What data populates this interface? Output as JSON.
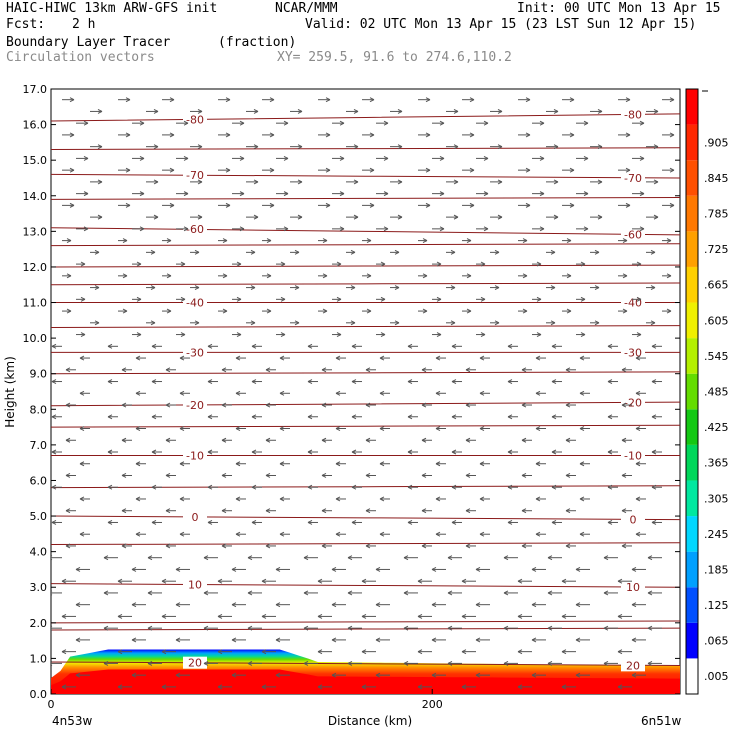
{
  "header": {
    "model": "HAIC-HIWC 13km ARW-GFS init",
    "org": "NCAR/MMM",
    "init": "Init: 00 UTC Mon 13 Apr 15",
    "fcst_label": "Fcst:",
    "fcst_value": "2 h",
    "valid": "Valid: 02 UTC Mon 13 Apr 15 (23 LST Sun 12 Apr 15)",
    "field1_name": "Boundary Layer Tracer",
    "field1_units": "(fraction)",
    "field2_name": "Circulation vectors",
    "xy_range": "XY= 259.5, 91.6 to 274.6,110.2"
  },
  "chart_data": {
    "type": "heatmap",
    "title": "Boundary Layer Tracer",
    "ylabel": "Height (km)",
    "xlabel": "Distance (km)",
    "x_left_label": "4n53w",
    "x_right_label": "6n51w",
    "ylim": [
      0,
      17
    ],
    "xlim": [
      0,
      330
    ],
    "yticks": [
      "0.0",
      "1.0",
      "2.0",
      "3.0",
      "4.0",
      "5.0",
      "6.0",
      "7.0",
      "8.0",
      "9.0",
      "10.0",
      "11.0",
      "12.0",
      "13.0",
      "14.0",
      "15.0",
      "16.0",
      "17.0"
    ],
    "xticks": [
      {
        "value": 0,
        "label": "0"
      },
      {
        "value": 200,
        "label": "200"
      }
    ],
    "colorbar": {
      "labels": [
        ".005",
        ".065",
        ".125",
        ".185",
        ".245",
        ".305",
        ".365",
        ".425",
        ".485",
        ".545",
        ".605",
        ".665",
        ".725",
        ".785",
        ".845",
        ".905"
      ],
      "colors": [
        "#ffffff",
        "#0000ff",
        "#0050ff",
        "#00a0ff",
        "#00d7ff",
        "#00e8a0",
        "#00d75a",
        "#14c814",
        "#64dc00",
        "#b4f000",
        "#f0f000",
        "#ffd000",
        "#ffa000",
        "#ff7800",
        "#ff5000",
        "#ff2800",
        "#ff0000"
      ]
    },
    "temperature_contours": [
      {
        "label": "-80",
        "y_left": 16.1,
        "y_right": 16.3
      },
      {
        "label": "-70",
        "y_left": 14.6,
        "y_right": 14.5
      },
      {
        "label": "-60",
        "y_left": 13.1,
        "y_right": 12.9
      },
      {
        "label": "-40",
        "y_left": 11.0,
        "y_right": 11.0
      },
      {
        "label": "-30",
        "y_left": 9.6,
        "y_right": 9.6
      },
      {
        "label": "-20",
        "y_left": 8.1,
        "y_right": 8.2
      },
      {
        "label": "-10",
        "y_left": 6.7,
        "y_right": 6.7
      },
      {
        "label": "0",
        "y_left": 5.0,
        "y_right": 4.9
      },
      {
        "label": "10",
        "y_left": 3.1,
        "y_right": 3.0
      },
      {
        "label": "20",
        "y_left": 0.9,
        "y_right": 0.8
      }
    ],
    "extra_contour_levels_y": [
      15.3,
      13.9,
      12.6,
      12.0,
      11.5,
      10.3,
      9.0,
      7.5,
      5.8,
      4.2,
      2.0,
      1.8
    ],
    "vector_flow": {
      "upper_direction": "eastward",
      "lower_direction": "westward",
      "reversal_height_km": 10.0
    },
    "tracer_layer": {
      "mean_top_km": 0.9,
      "max_top_km": 1.25,
      "max_value": 1.0
    }
  }
}
